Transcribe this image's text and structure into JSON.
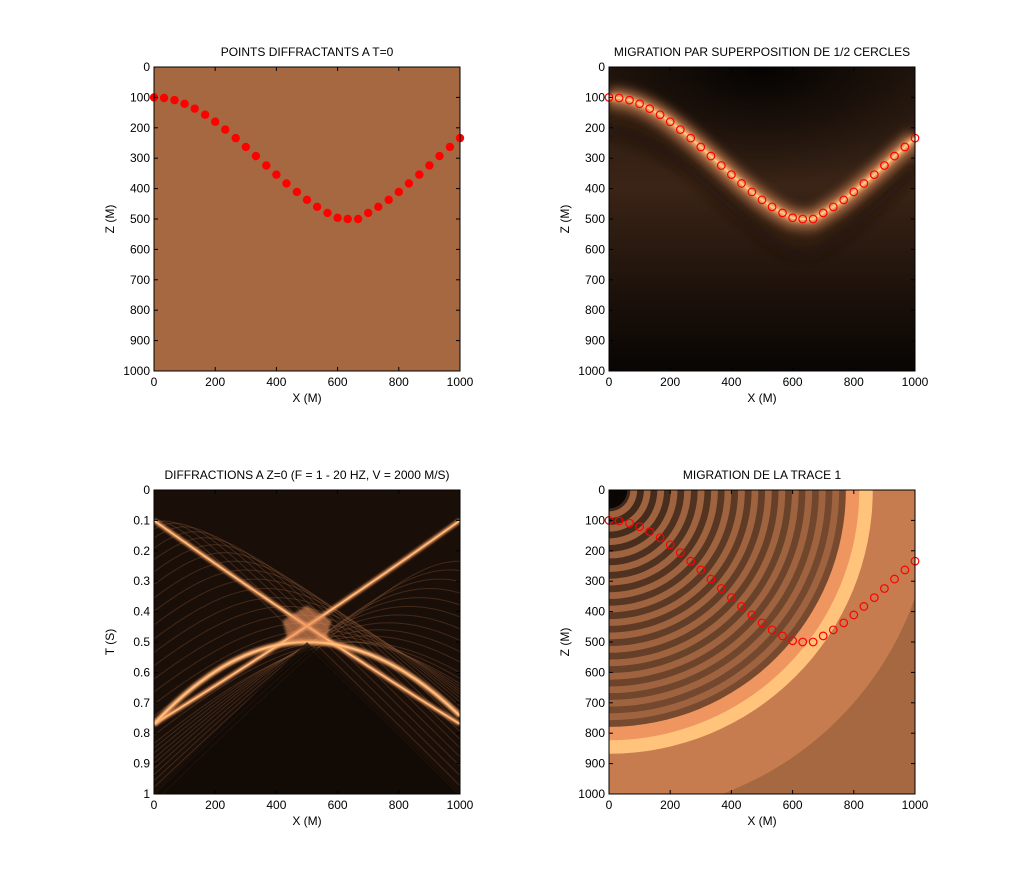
{
  "figure": {
    "palette": {
      "background": "#ffffff",
      "copper_flat": "#a56841",
      "marker": "#ff0000",
      "axis": "#000000"
    }
  },
  "chart_data": [
    {
      "type": "scatter",
      "title": "POINTS DIFFRACTANTS A T=0",
      "xlabel": "X (M)",
      "ylabel": "Z (M)",
      "xlim": [
        0,
        1000
      ],
      "ylim": [
        0,
        1000
      ],
      "y_reversed": true,
      "xticks": [
        "0",
        "200",
        "400",
        "600",
        "800",
        "1000"
      ],
      "yticks": [
        "0",
        "100",
        "200",
        "300",
        "400",
        "500",
        "600",
        "700",
        "800",
        "900",
        "1000"
      ],
      "image": "uniform copper",
      "marker_style": "filled",
      "points": {
        "x": [
          0,
          33,
          67,
          100,
          133,
          167,
          200,
          233,
          267,
          300,
          333,
          367,
          400,
          433,
          467,
          500,
          533,
          567,
          600,
          633,
          667,
          700,
          733,
          767,
          800,
          833,
          867,
          900,
          933,
          967,
          1000
        ],
        "y": [
          100,
          102,
          109,
          121,
          137,
          157,
          180,
          206,
          234,
          263,
          293,
          324,
          354,
          383,
          411,
          437,
          460,
          480,
          496,
          500,
          500,
          480,
          460,
          437,
          411,
          383,
          354,
          324,
          293,
          263,
          234
        ]
      }
    },
    {
      "type": "scatter",
      "title": "MIGRATION PAR SUPERPOSITION DE 1/2 CERCLES",
      "xlabel": "X (M)",
      "ylabel": "Z (M)",
      "xlim": [
        0,
        1000
      ],
      "ylim": [
        0,
        1000
      ],
      "y_reversed": true,
      "xticks": [
        "0",
        "200",
        "400",
        "600",
        "800",
        "1000"
      ],
      "yticks": [
        "0",
        "100",
        "200",
        "300",
        "400",
        "500",
        "600",
        "700",
        "800",
        "900",
        "1000"
      ],
      "image": "migrated section, bright along reflector",
      "marker_style": "open",
      "points": "same as panel 1"
    },
    {
      "type": "heatmap",
      "title": "DIFFRACTIONS A Z=0 (F = 1 - 20 HZ, V = 2000 M/S)",
      "xlabel": "X (M)",
      "ylabel": "T (S)",
      "xlim": [
        0,
        1000
      ],
      "ylim": [
        0,
        1
      ],
      "y_reversed": true,
      "xticks": [
        "0",
        "200",
        "400",
        "600",
        "800",
        "1000"
      ],
      "yticks": [
        "0",
        "0.1",
        "0.2",
        "0.3",
        "0.4",
        "0.5",
        "0.6",
        "0.7",
        "0.8",
        "0.9",
        "1"
      ],
      "image": "diffraction hyperbolas"
    },
    {
      "type": "scatter",
      "title": "MIGRATION DE LA TRACE 1",
      "xlabel": "X (M)",
      "ylabel": "Z (M)",
      "xlim": [
        0,
        1000
      ],
      "ylim": [
        0,
        1000
      ],
      "y_reversed": true,
      "xticks": [
        "0",
        "200",
        "400",
        "600",
        "800",
        "1000"
      ],
      "yticks": [
        "0",
        "100",
        "200",
        "300",
        "400",
        "500",
        "600",
        "700",
        "800",
        "900",
        "1000"
      ],
      "image": "concentric half circles centred at x=0",
      "marker_style": "open",
      "points": "same as panel 1"
    }
  ]
}
